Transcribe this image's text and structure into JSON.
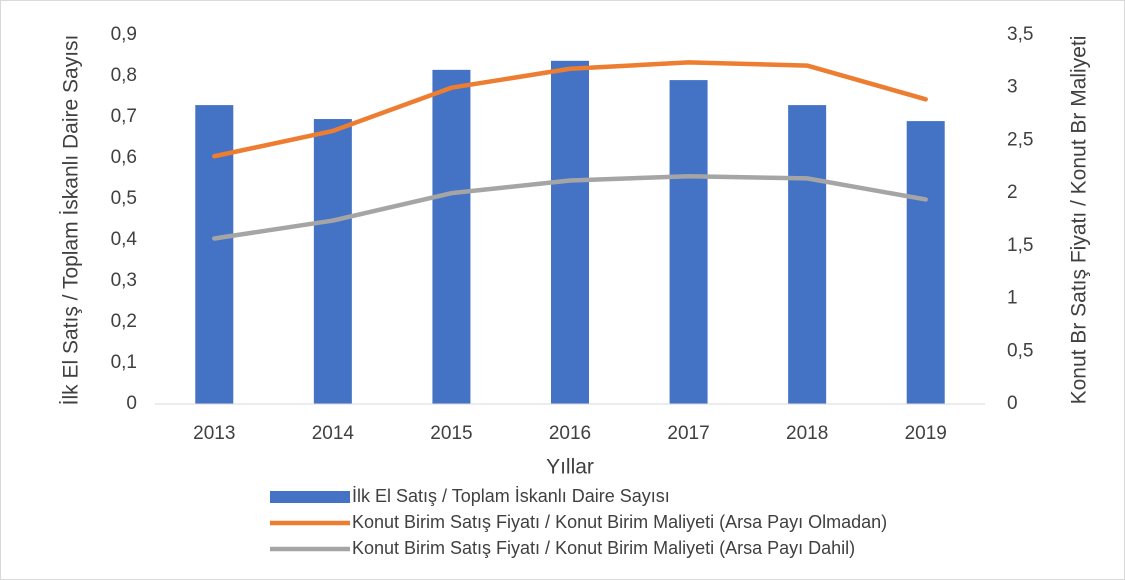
{
  "chart_data": {
    "type": "bar-line",
    "x_label": "Yıllar",
    "y_label": "İlk El Satış / Toplam İskanlı Daire Sayısı",
    "y2_label": "Konut Br Satış Fiyatı / Konut Br Maliyeti",
    "categories": [
      "2013",
      "2014",
      "2015",
      "2016",
      "2017",
      "2018",
      "2019"
    ],
    "series": [
      {
        "name": "İlk El Satış / Toplam İskanlı Daire Sayısı",
        "type": "bar",
        "color": "#4472c4",
        "values": [
          0.729,
          0.695,
          0.815,
          0.837,
          0.79,
          0.729,
          0.69
        ]
      },
      {
        "name": "Konut Birim Satış Fiyatı / Konut Birim Maliyeti (Arsa Payı Olmadan)",
        "type": "line",
        "axis": "y2",
        "color": "#ed7d31",
        "values": [
          2.35,
          2.59,
          3.0,
          3.18,
          3.24,
          3.21,
          2.89
        ]
      },
      {
        "name": "Konut Birim Satış Fiyatı / Konut Birim Maliyeti (Arsa Payı Dahil)",
        "type": "line",
        "axis": "y2",
        "color": "#a5a5a5",
        "values": [
          1.57,
          1.74,
          2.0,
          2.12,
          2.16,
          2.14,
          1.94
        ]
      }
    ],
    "ylim": [
      0,
      0.9
    ],
    "yticks": [
      0,
      {
        "value": 0.1,
        "label": "0,1"
      },
      {
        "value": 0.2,
        "label": "0,2"
      },
      {
        "value": 0.3,
        "label": "0,3"
      },
      {
        "value": 0.4,
        "label": "0,4"
      },
      {
        "value": 0.5,
        "label": "0,5"
      },
      {
        "value": 0.6,
        "label": "0,6"
      },
      {
        "value": 0.7,
        "label": "0,7"
      },
      {
        "value": 0.8,
        "label": "0,8"
      },
      {
        "value": 0.9,
        "label": "0,9"
      }
    ],
    "y2lim": [
      0,
      3.5
    ],
    "y2ticks": [
      0,
      {
        "value": 0.5,
        "label": "0,5"
      },
      1,
      {
        "value": 1.5,
        "label": "1,5"
      },
      2,
      {
        "value": 2.5,
        "label": "2,5"
      },
      3,
      {
        "value": 3.5,
        "label": "3,5"
      }
    ],
    "grid": false,
    "legend": "bottom"
  }
}
